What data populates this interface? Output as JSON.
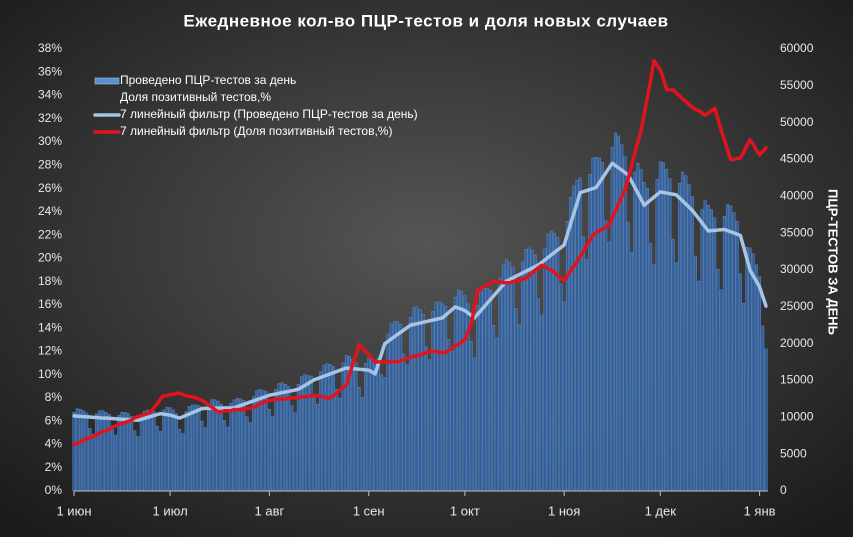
{
  "chart_data": {
    "type": "bar",
    "title": "Ежедневное кол-во ПЦР-тестов и доля новых случаев",
    "y2label": "ПЦР-ТЕСТОВ ЗА ДЕНЬ",
    "categories": [
      "1 июн",
      null,
      null,
      null,
      null,
      null,
      null,
      null,
      null,
      null,
      null,
      null,
      null,
      null,
      null,
      null,
      null,
      null,
      null,
      null,
      null,
      null,
      null,
      null,
      null,
      null,
      null,
      null,
      null,
      null,
      "1 июл",
      null,
      null,
      null,
      null,
      null,
      null,
      null,
      null,
      null,
      null,
      null,
      null,
      null,
      null,
      null,
      null,
      null,
      null,
      null,
      null,
      null,
      null,
      null,
      null,
      null,
      null,
      null,
      null,
      null,
      null,
      "1 авг",
      null,
      null,
      null,
      null,
      null,
      null,
      null,
      null,
      null,
      null,
      null,
      null,
      null,
      null,
      null,
      null,
      null,
      null,
      null,
      null,
      null,
      null,
      null,
      null,
      null,
      null,
      null,
      null,
      null,
      null,
      "1 сен",
      null,
      null,
      null,
      null,
      null,
      null,
      null,
      null,
      null,
      null,
      null,
      null,
      null,
      null,
      null,
      null,
      null,
      null,
      null,
      null,
      null,
      null,
      null,
      null,
      null,
      null,
      null,
      null,
      null,
      "1 окт",
      null,
      null,
      null,
      null,
      null,
      null,
      null,
      null,
      null,
      null,
      null,
      null,
      null,
      null,
      null,
      null,
      null,
      null,
      null,
      null,
      null,
      null,
      null,
      null,
      null,
      null,
      null,
      null,
      null,
      null,
      "1 ноя",
      null,
      null,
      null,
      null,
      null,
      null,
      null,
      null,
      null,
      null,
      null,
      null,
      null,
      null,
      null,
      null,
      null,
      null,
      null,
      null,
      null,
      null,
      null,
      null,
      null,
      null,
      null,
      null,
      null,
      "1 дек",
      null,
      null,
      null,
      null,
      null,
      null,
      null,
      null,
      null,
      null,
      null,
      null,
      null,
      null,
      null,
      null,
      null,
      null,
      null,
      null,
      null,
      null,
      null,
      null,
      null,
      null,
      null,
      null,
      null,
      null,
      "1 янв",
      null,
      null
    ],
    "ylim": [
      0,
      38
    ],
    "yticks": [
      {
        "value": 0,
        "label": "0%"
      },
      {
        "value": 2,
        "label": "2%"
      },
      {
        "value": 4,
        "label": "4%"
      },
      {
        "value": 6,
        "label": "6%"
      },
      {
        "value": 8,
        "label": "8%"
      },
      {
        "value": 10,
        "label": "10%"
      },
      {
        "value": 12,
        "label": "12%"
      },
      {
        "value": 14,
        "label": "14%"
      },
      {
        "value": 16,
        "label": "16%"
      },
      {
        "value": 18,
        "label": "18%"
      },
      {
        "value": 20,
        "label": "20%"
      },
      {
        "value": 22,
        "label": "22%"
      },
      {
        "value": 24,
        "label": "24%"
      },
      {
        "value": 26,
        "label": "26%"
      },
      {
        "value": 28,
        "label": "28%"
      },
      {
        "value": 30,
        "label": "30%"
      },
      {
        "value": 32,
        "label": "32%"
      },
      {
        "value": 34,
        "label": "34%"
      },
      {
        "value": 36,
        "label": "36%"
      },
      {
        "value": 38,
        "label": "38%"
      }
    ],
    "y2lim": [
      0,
      60000
    ],
    "y2ticks": [
      0,
      5000,
      10000,
      15000,
      20000,
      25000,
      30000,
      35000,
      40000,
      45000,
      50000,
      55000,
      60000
    ],
    "grid": false,
    "legend": "upper-left",
    "series": [
      {
        "name": "Проведено ПЦР-тестов  за день",
        "type": "bar",
        "axis": "y2",
        "color": "#2f5f9e",
        "values": [
          10700,
          11200,
          11100,
          10900,
          10600,
          8500,
          7700,
          10500,
          10900,
          10900,
          10700,
          10400,
          8400,
          7600,
          10300,
          10700,
          10700,
          10500,
          10100,
          8200,
          7400,
          10200,
          10800,
          11000,
          10900,
          10800,
          8800,
          8100,
          11000,
          11400,
          11300,
          11000,
          10500,
          8400,
          7800,
          10800,
          11500,
          11700,
          11700,
          11600,
          9500,
          8600,
          11800,
          12400,
          12400,
          12200,
          11800,
          9600,
          8700,
          11900,
          12400,
          12600,
          12500,
          12300,
          10100,
          9300,
          12800,
          13600,
          13800,
          13700,
          13500,
          11100,
          10100,
          13800,
          14600,
          14700,
          14500,
          14200,
          11600,
          10600,
          14500,
          15500,
          15800,
          15700,
          15600,
          12800,
          11800,
          16200,
          17100,
          17300,
          17200,
          16900,
          13800,
          12600,
          17400,
          18400,
          18300,
          17900,
          17400,
          14100,
          12700,
          17300,
          18000,
          17800,
          17200,
          18100,
          15800,
          15400,
          21300,
          22700,
          23000,
          23000,
          22600,
          18600,
          17100,
          23600,
          24900,
          25000,
          24600,
          24000,
          19600,
          17800,
          24400,
          25600,
          25700,
          25400,
          25100,
          20600,
          19000,
          26300,
          27300,
          27100,
          26500,
          25400,
          20300,
          18100,
          25200,
          27000,
          27500,
          27500,
          27300,
          22500,
          20800,
          28900,
          30800,
          31400,
          31000,
          30400,
          24800,
          22600,
          31100,
          32800,
          33000,
          32700,
          32000,
          26100,
          23900,
          32900,
          34900,
          35300,
          35000,
          34400,
          28100,
          25700,
          36600,
          39900,
          41400,
          42200,
          42500,
          34500,
          31400,
          43000,
          45200,
          45300,
          45200,
          44600,
          36700,
          33800,
          46700,
          48600,
          48200,
          47000,
          45400,
          36500,
          32400,
          43300,
          44500,
          43600,
          41900,
          41100,
          33600,
          30700,
          42300,
          44700,
          44600,
          43700,
          42400,
          34200,
          31000,
          41800,
          43300,
          42800,
          41600,
          40000,
          31900,
          28500,
          38200,
          39400,
          38800,
          38200,
          37100,
          30100,
          27300,
          37300,
          38900,
          38700,
          37800,
          36600,
          29500,
          25500,
          33100,
          33000,
          32200,
          30700,
          29100,
          22400,
          19300
        ]
      },
      {
        "name": "Доля позитивный  тестов,%",
        "type": "line",
        "axis": "y",
        "color": "none",
        "values": [
          null,
          null,
          null,
          null,
          null,
          null,
          null,
          null,
          null,
          null,
          null,
          null,
          null,
          null,
          null,
          null,
          null,
          null,
          null,
          null,
          null,
          null,
          null,
          null,
          null,
          null,
          null,
          null,
          null,
          null,
          null,
          null,
          null,
          null,
          null,
          null,
          null,
          null,
          null,
          null,
          null,
          null,
          null,
          null,
          null,
          null,
          null,
          null,
          null,
          null,
          null,
          null,
          null,
          null,
          null,
          null,
          null,
          null,
          null,
          null,
          null,
          null,
          null,
          null,
          null,
          null,
          null,
          null,
          null,
          null,
          null,
          null,
          null,
          null,
          null,
          null,
          null,
          null,
          null,
          null,
          null,
          null,
          null,
          null,
          null,
          null,
          null,
          null,
          null,
          null,
          null,
          null,
          null,
          null,
          null,
          null,
          null,
          null,
          null,
          null,
          null,
          null,
          null,
          null,
          null,
          null,
          null,
          null,
          null,
          null,
          null,
          null,
          null,
          null,
          null,
          null,
          null,
          null,
          null,
          null,
          null,
          null,
          null,
          null,
          null,
          null,
          null,
          null,
          null,
          null,
          null,
          null,
          null,
          null,
          null,
          null,
          null,
          null,
          null,
          null,
          null,
          null,
          null,
          null,
          null,
          null,
          null,
          null,
          null,
          null,
          null,
          null,
          null,
          null,
          null,
          null,
          null,
          null,
          null,
          null,
          null,
          null,
          null,
          null,
          null,
          null,
          null,
          null,
          null,
          null,
          null,
          null,
          null,
          null,
          null,
          null,
          null,
          null,
          null,
          null,
          null,
          null,
          null,
          null,
          null,
          null,
          null,
          null,
          null,
          null,
          null,
          null,
          null,
          null,
          null,
          null,
          null,
          null,
          null,
          null,
          null,
          null,
          null,
          null,
          null,
          null,
          null,
          null,
          null,
          null,
          null,
          null,
          null,
          null,
          null,
          null,
          null
        ]
      },
      {
        "name": "7 линейный фильтр (Проведено ПЦР-тестов  за день)",
        "type": "line",
        "axis": "y2",
        "color": "#a6c4e4",
        "values": [
          10200,
          10170,
          10130,
          10100,
          10070,
          10040,
          10000,
          9970,
          9940,
          9900,
          9900,
          9870,
          9840,
          9810,
          9780,
          9750,
          9720,
          9690,
          9660,
          9630,
          9600,
          9730,
          9860,
          9990,
          10120,
          10250,
          10380,
          10500,
          10430,
          10370,
          10300,
          10170,
          10030,
          9900,
          10090,
          10270,
          10460,
          10640,
          10830,
          11010,
          11200,
          11210,
          11220,
          11230,
          11240,
          11250,
          11260,
          11270,
          11280,
          11290,
          11300,
          11450,
          11610,
          11760,
          11920,
          12070,
          12230,
          12380,
          12540,
          12690,
          12850,
          13000,
          13090,
          13180,
          13270,
          13360,
          13440,
          13530,
          13620,
          13710,
          13800,
          14060,
          14320,
          14580,
          14840,
          15100,
          15260,
          15420,
          15580,
          15740,
          15900,
          16060,
          16220,
          16380,
          16540,
          16700,
          16660,
          16610,
          16570,
          16530,
          16490,
          16440,
          16400,
          16150,
          15900,
          17270,
          18630,
          20000,
          20310,
          20630,
          20940,
          21250,
          21560,
          21880,
          22190,
          22500,
          22600,
          22700,
          22800,
          22900,
          23000,
          23100,
          23200,
          23300,
          23400,
          23500,
          23880,
          24250,
          24630,
          25000,
          24830,
          24670,
          24500,
          24170,
          23830,
          23500,
          24000,
          24500,
          25000,
          25500,
          26000,
          26500,
          27000,
          27500,
          28000,
          28500,
          28720,
          28940,
          29160,
          29380,
          29600,
          29820,
          30040,
          30260,
          30480,
          30700,
          31040,
          31380,
          31710,
          32050,
          32390,
          32730,
          33060,
          33400,
          34820,
          36240,
          37660,
          39080,
          40500,
          40640,
          40780,
          40920,
          41060,
          41200,
          41860,
          42520,
          43180,
          43840,
          44500,
          44180,
          43860,
          43540,
          43220,
          42900,
          42080,
          41260,
          40440,
          39620,
          38800,
          39160,
          39520,
          39880,
          40240,
          40600,
          40520,
          40440,
          40360,
          40280,
          40200,
          39780,
          39360,
          38940,
          38520,
          38100,
          37540,
          36980,
          36420,
          35860,
          35300,
          35340,
          35380,
          35420,
          35460,
          35500,
          35340,
          35180,
          35020,
          34860,
          34700,
          33130,
          31570,
          30000,
          29230,
          28470,
          27700,
          26400,
          25100
        ]
      },
      {
        "name": "7 линейный фильтр (Доля позитивный  тестов,%)",
        "type": "line",
        "axis": "y",
        "color": "#e0141e",
        "values": [
          4.0,
          4.1,
          4.2,
          4.4,
          4.5,
          4.6,
          4.7,
          4.8,
          5.0,
          5.1,
          5.2,
          5.3,
          5.5,
          5.6,
          5.7,
          5.8,
          5.9,
          6.0,
          6.1,
          6.3,
          6.4,
          6.5,
          6.6,
          6.7,
          6.8,
          7.2,
          7.5,
          7.9,
          8.2,
          8.2,
          8.3,
          8.3,
          8.4,
          8.4,
          8.3,
          8.2,
          8.1,
          8.1,
          8.0,
          7.9,
          7.8,
          7.6,
          7.4,
          7.2,
          7.0,
          6.8,
          6.8,
          6.9,
          6.9,
          6.9,
          7.0,
          7.0,
          7.0,
          7.0,
          7.1,
          7.1,
          7.2,
          7.3,
          7.5,
          7.6,
          7.7,
          7.8,
          7.8,
          7.9,
          7.9,
          7.9,
          7.9,
          8.0,
          8.0,
          8.0,
          8.0,
          8.1,
          8.1,
          8.1,
          8.2,
          8.2,
          8.2,
          8.1,
          8.1,
          8.0,
          8.0,
          8.2,
          8.4,
          8.7,
          8.9,
          9.1,
          10.0,
          10.9,
          11.7,
          12.6,
          12.3,
          12.0,
          11.7,
          11.4,
          11.1,
          11.1,
          11.1,
          11.1,
          11.1,
          11.1,
          11.1,
          11.1,
          11.2,
          11.3,
          11.4,
          11.5,
          11.6,
          11.6,
          11.7,
          11.8,
          11.9,
          12.0,
          12.0,
          12.0,
          11.9,
          11.9,
          11.9,
          12.1,
          12.3,
          12.5,
          12.6,
          12.8,
          13.0,
          13.7,
          14.3,
          15.8,
          17.3,
          17.4,
          17.6,
          17.7,
          17.9,
          18.0,
          18.0,
          18.0,
          17.9,
          17.9,
          17.9,
          18.0,
          18.1,
          18.1,
          18.2,
          18.3,
          18.5,
          18.7,
          19.0,
          19.2,
          19.4,
          19.3,
          19.1,
          19.0,
          18.8,
          18.5,
          18.3,
          18.1,
          18.5,
          18.9,
          19.3,
          19.7,
          20.2,
          20.6,
          21.1,
          21.5,
          22.0,
          22.2,
          22.4,
          22.5,
          22.7,
          22.9,
          23.5,
          24.1,
          24.7,
          25.3,
          25.9,
          26.9,
          27.9,
          29.0,
          30.0,
          31.0,
          32.4,
          33.9,
          35.3,
          37.0,
          36.6,
          36.2,
          35.4,
          34.5,
          34.5,
          34.5,
          34.2,
          34.0,
          33.7,
          33.5,
          33.2,
          33.0,
          32.8,
          32.7,
          32.5,
          32.3,
          32.5,
          32.7,
          32.9,
          32.0,
          31.0,
          30.2,
          29.3,
          28.5,
          28.5,
          28.6,
          28.6,
          29.1,
          29.7,
          30.2,
          29.8,
          29.3,
          28.9,
          29.2,
          29.5
        ]
      }
    ]
  }
}
